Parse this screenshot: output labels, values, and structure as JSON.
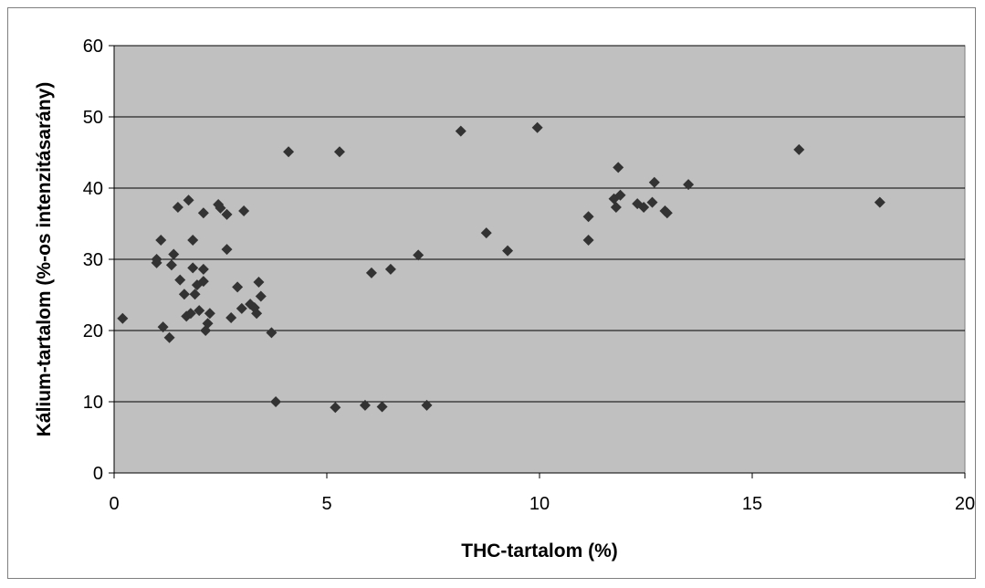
{
  "chart_data": {
    "type": "scatter",
    "title": "",
    "xlabel": "THC-tartalom (%)",
    "ylabel": "Kálium-tartalom (%-os intenzitásarány)",
    "xlim": [
      0,
      20
    ],
    "ylim": [
      0,
      60
    ],
    "xticks": [
      0,
      5,
      10,
      15,
      20
    ],
    "xtick_labels": [
      "0",
      "5",
      "10",
      "15",
      "20"
    ],
    "yticks": [
      0,
      10,
      20,
      30,
      40,
      50,
      60
    ],
    "ytick_labels": [
      "0",
      "10",
      "20",
      "30",
      "40",
      "50",
      "60"
    ],
    "grid": "horizontal",
    "legend": "none",
    "colors": {
      "plot_background": "#c0c0c0",
      "marker": "#333333",
      "gridline": "#000000",
      "frame": "#7f7f7f"
    },
    "marker": "diamond",
    "points": [
      [
        0.2,
        21.7
      ],
      [
        1.0,
        29.5
      ],
      [
        1.0,
        30.0
      ],
      [
        1.1,
        32.7
      ],
      [
        1.15,
        20.5
      ],
      [
        1.3,
        19.0
      ],
      [
        1.35,
        29.2
      ],
      [
        1.4,
        30.7
      ],
      [
        1.5,
        37.3
      ],
      [
        1.55,
        27.1
      ],
      [
        1.65,
        25.1
      ],
      [
        1.7,
        22.0
      ],
      [
        1.75,
        38.3
      ],
      [
        1.8,
        22.4
      ],
      [
        1.85,
        32.7
      ],
      [
        1.85,
        28.8
      ],
      [
        1.9,
        25.1
      ],
      [
        1.95,
        26.4
      ],
      [
        2.0,
        22.8
      ],
      [
        2.1,
        36.5
      ],
      [
        2.1,
        28.6
      ],
      [
        2.1,
        26.9
      ],
      [
        2.15,
        20.0
      ],
      [
        2.2,
        21.0
      ],
      [
        2.25,
        22.4
      ],
      [
        2.45,
        37.7
      ],
      [
        2.5,
        37.2
      ],
      [
        2.65,
        36.3
      ],
      [
        2.65,
        31.4
      ],
      [
        2.75,
        21.8
      ],
      [
        2.9,
        26.1
      ],
      [
        3.0,
        23.1
      ],
      [
        3.05,
        36.8
      ],
      [
        3.2,
        23.7
      ],
      [
        3.3,
        23.2
      ],
      [
        3.35,
        22.4
      ],
      [
        3.4,
        26.8
      ],
      [
        3.45,
        24.8
      ],
      [
        3.7,
        19.7
      ],
      [
        3.8,
        10.0
      ],
      [
        4.1,
        45.1
      ],
      [
        5.2,
        9.2
      ],
      [
        5.3,
        45.1
      ],
      [
        5.9,
        9.5
      ],
      [
        6.05,
        28.1
      ],
      [
        6.3,
        9.3
      ],
      [
        6.5,
        28.6
      ],
      [
        7.15,
        30.6
      ],
      [
        7.35,
        9.5
      ],
      [
        8.15,
        48.0
      ],
      [
        8.75,
        33.7
      ],
      [
        9.25,
        31.2
      ],
      [
        9.95,
        48.5
      ],
      [
        11.15,
        36.0
      ],
      [
        11.15,
        32.7
      ],
      [
        11.75,
        38.5
      ],
      [
        11.8,
        37.3
      ],
      [
        11.85,
        42.9
      ],
      [
        11.9,
        39.0
      ],
      [
        12.3,
        37.8
      ],
      [
        12.45,
        37.3
      ],
      [
        12.65,
        38.0
      ],
      [
        12.7,
        40.8
      ],
      [
        12.95,
        36.8
      ],
      [
        13.0,
        36.5
      ],
      [
        13.5,
        40.5
      ],
      [
        16.1,
        45.4
      ],
      [
        18.0,
        38.0
      ]
    ]
  }
}
